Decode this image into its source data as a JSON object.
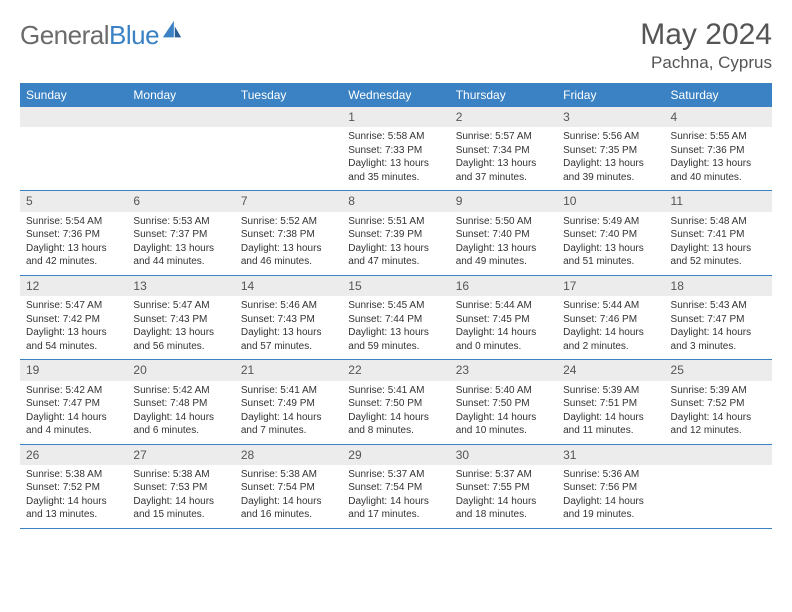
{
  "brand": {
    "name_gray": "General",
    "name_blue": "Blue"
  },
  "title": "May 2024",
  "location": "Pachna, Cyprus",
  "colors": {
    "header_bg": "#3a82c4",
    "header_text": "#ffffff",
    "daynum_bg": "#ececec",
    "text": "#333333",
    "rule": "#3a82c4",
    "logo_gray": "#6b6b6b",
    "logo_blue": "#3a82c4",
    "page_bg": "#ffffff"
  },
  "typography": {
    "title_fontsize": 30,
    "location_fontsize": 17,
    "weekday_fontsize": 12,
    "daynum_fontsize": 12,
    "cell_fontsize": 10
  },
  "weekdays": [
    "Sunday",
    "Monday",
    "Tuesday",
    "Wednesday",
    "Thursday",
    "Friday",
    "Saturday"
  ],
  "weeks": [
    [
      null,
      null,
      null,
      {
        "n": "1",
        "sunrise": "Sunrise: 5:58 AM",
        "sunset": "Sunset: 7:33 PM",
        "day": "Daylight: 13 hours and 35 minutes."
      },
      {
        "n": "2",
        "sunrise": "Sunrise: 5:57 AM",
        "sunset": "Sunset: 7:34 PM",
        "day": "Daylight: 13 hours and 37 minutes."
      },
      {
        "n": "3",
        "sunrise": "Sunrise: 5:56 AM",
        "sunset": "Sunset: 7:35 PM",
        "day": "Daylight: 13 hours and 39 minutes."
      },
      {
        "n": "4",
        "sunrise": "Sunrise: 5:55 AM",
        "sunset": "Sunset: 7:36 PM",
        "day": "Daylight: 13 hours and 40 minutes."
      }
    ],
    [
      {
        "n": "5",
        "sunrise": "Sunrise: 5:54 AM",
        "sunset": "Sunset: 7:36 PM",
        "day": "Daylight: 13 hours and 42 minutes."
      },
      {
        "n": "6",
        "sunrise": "Sunrise: 5:53 AM",
        "sunset": "Sunset: 7:37 PM",
        "day": "Daylight: 13 hours and 44 minutes."
      },
      {
        "n": "7",
        "sunrise": "Sunrise: 5:52 AM",
        "sunset": "Sunset: 7:38 PM",
        "day": "Daylight: 13 hours and 46 minutes."
      },
      {
        "n": "8",
        "sunrise": "Sunrise: 5:51 AM",
        "sunset": "Sunset: 7:39 PM",
        "day": "Daylight: 13 hours and 47 minutes."
      },
      {
        "n": "9",
        "sunrise": "Sunrise: 5:50 AM",
        "sunset": "Sunset: 7:40 PM",
        "day": "Daylight: 13 hours and 49 minutes."
      },
      {
        "n": "10",
        "sunrise": "Sunrise: 5:49 AM",
        "sunset": "Sunset: 7:40 PM",
        "day": "Daylight: 13 hours and 51 minutes."
      },
      {
        "n": "11",
        "sunrise": "Sunrise: 5:48 AM",
        "sunset": "Sunset: 7:41 PM",
        "day": "Daylight: 13 hours and 52 minutes."
      }
    ],
    [
      {
        "n": "12",
        "sunrise": "Sunrise: 5:47 AM",
        "sunset": "Sunset: 7:42 PM",
        "day": "Daylight: 13 hours and 54 minutes."
      },
      {
        "n": "13",
        "sunrise": "Sunrise: 5:47 AM",
        "sunset": "Sunset: 7:43 PM",
        "day": "Daylight: 13 hours and 56 minutes."
      },
      {
        "n": "14",
        "sunrise": "Sunrise: 5:46 AM",
        "sunset": "Sunset: 7:43 PM",
        "day": "Daylight: 13 hours and 57 minutes."
      },
      {
        "n": "15",
        "sunrise": "Sunrise: 5:45 AM",
        "sunset": "Sunset: 7:44 PM",
        "day": "Daylight: 13 hours and 59 minutes."
      },
      {
        "n": "16",
        "sunrise": "Sunrise: 5:44 AM",
        "sunset": "Sunset: 7:45 PM",
        "day": "Daylight: 14 hours and 0 minutes."
      },
      {
        "n": "17",
        "sunrise": "Sunrise: 5:44 AM",
        "sunset": "Sunset: 7:46 PM",
        "day": "Daylight: 14 hours and 2 minutes."
      },
      {
        "n": "18",
        "sunrise": "Sunrise: 5:43 AM",
        "sunset": "Sunset: 7:47 PM",
        "day": "Daylight: 14 hours and 3 minutes."
      }
    ],
    [
      {
        "n": "19",
        "sunrise": "Sunrise: 5:42 AM",
        "sunset": "Sunset: 7:47 PM",
        "day": "Daylight: 14 hours and 4 minutes."
      },
      {
        "n": "20",
        "sunrise": "Sunrise: 5:42 AM",
        "sunset": "Sunset: 7:48 PM",
        "day": "Daylight: 14 hours and 6 minutes."
      },
      {
        "n": "21",
        "sunrise": "Sunrise: 5:41 AM",
        "sunset": "Sunset: 7:49 PM",
        "day": "Daylight: 14 hours and 7 minutes."
      },
      {
        "n": "22",
        "sunrise": "Sunrise: 5:41 AM",
        "sunset": "Sunset: 7:50 PM",
        "day": "Daylight: 14 hours and 8 minutes."
      },
      {
        "n": "23",
        "sunrise": "Sunrise: 5:40 AM",
        "sunset": "Sunset: 7:50 PM",
        "day": "Daylight: 14 hours and 10 minutes."
      },
      {
        "n": "24",
        "sunrise": "Sunrise: 5:39 AM",
        "sunset": "Sunset: 7:51 PM",
        "day": "Daylight: 14 hours and 11 minutes."
      },
      {
        "n": "25",
        "sunrise": "Sunrise: 5:39 AM",
        "sunset": "Sunset: 7:52 PM",
        "day": "Daylight: 14 hours and 12 minutes."
      }
    ],
    [
      {
        "n": "26",
        "sunrise": "Sunrise: 5:38 AM",
        "sunset": "Sunset: 7:52 PM",
        "day": "Daylight: 14 hours and 13 minutes."
      },
      {
        "n": "27",
        "sunrise": "Sunrise: 5:38 AM",
        "sunset": "Sunset: 7:53 PM",
        "day": "Daylight: 14 hours and 15 minutes."
      },
      {
        "n": "28",
        "sunrise": "Sunrise: 5:38 AM",
        "sunset": "Sunset: 7:54 PM",
        "day": "Daylight: 14 hours and 16 minutes."
      },
      {
        "n": "29",
        "sunrise": "Sunrise: 5:37 AM",
        "sunset": "Sunset: 7:54 PM",
        "day": "Daylight: 14 hours and 17 minutes."
      },
      {
        "n": "30",
        "sunrise": "Sunrise: 5:37 AM",
        "sunset": "Sunset: 7:55 PM",
        "day": "Daylight: 14 hours and 18 minutes."
      },
      {
        "n": "31",
        "sunrise": "Sunrise: 5:36 AM",
        "sunset": "Sunset: 7:56 PM",
        "day": "Daylight: 14 hours and 19 minutes."
      },
      null
    ]
  ]
}
